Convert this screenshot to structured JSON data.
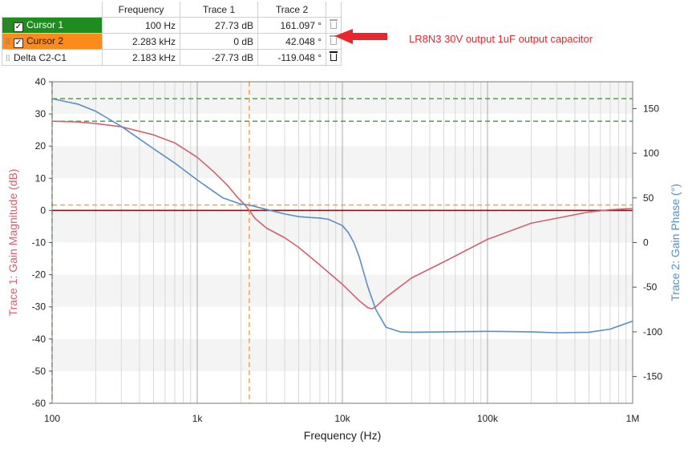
{
  "cursor_table": {
    "headers": [
      "Frequency",
      "Trace 1",
      "Trace 2"
    ],
    "rows": [
      {
        "name": "Cursor 1",
        "checked": true,
        "freq": "100 Hz",
        "t1": "27.73 dB",
        "t2": "161.097 °",
        "color": "#1e8c1e"
      },
      {
        "name": "Cursor 2",
        "checked": true,
        "freq": "2.283 kHz",
        "t1": "0 dB",
        "t2": "42.048 °",
        "color": "#ff8a1c"
      },
      {
        "name": "Delta C2-C1",
        "checked": false,
        "freq": "2.183 kHz",
        "t1": "-27.73 dB",
        "t2": "-119.048 °"
      }
    ]
  },
  "annotation": {
    "text": "LR8N3  30V output  1uF output capacitor",
    "color": "#e8262d"
  },
  "chart_data": {
    "type": "line",
    "xlabel": "Frequency (Hz)",
    "ylabel": "Trace 1: Gain Magnitude (dB)",
    "y2label": "Trace 2: Gain Phase (°)",
    "x_scale": "log",
    "xlim": [
      100,
      1000000
    ],
    "ylim": [
      -60,
      40
    ],
    "y2lim": [
      -180,
      180
    ],
    "x_ticks": [
      {
        "v": 100,
        "label": "100"
      },
      {
        "v": 1000,
        "label": "1k"
      },
      {
        "v": 10000,
        "label": "10k"
      },
      {
        "v": 100000,
        "label": "100k"
      },
      {
        "v": 1000000,
        "label": "1M"
      }
    ],
    "y_ticks": [
      40,
      30,
      20,
      10,
      0,
      -10,
      -20,
      -30,
      -40,
      -50,
      -60
    ],
    "y2_ticks": [
      150,
      100,
      50,
      0,
      -50,
      -100,
      -150
    ],
    "grid": true,
    "series": [
      {
        "axis": "left",
        "color": "#d2616e",
        "x": [
          100,
          150,
          200,
          300,
          500,
          700,
          1000,
          1300,
          1600,
          1900,
          2100,
          2283,
          2500,
          3000,
          4000,
          5000,
          7000,
          10000,
          13000,
          15000,
          16000,
          17000,
          20000,
          30000,
          50000,
          100000,
          200000,
          500000,
          700000,
          1000000
        ],
        "y": [
          27.73,
          27.5,
          27.0,
          26.0,
          23.5,
          21.0,
          16.5,
          12.0,
          8.0,
          4.0,
          2.0,
          0.0,
          -2.5,
          -5.5,
          -8.5,
          -11.5,
          -17.0,
          -23.0,
          -28.0,
          -30.3,
          -30.6,
          -30.0,
          -27.0,
          -21.0,
          -16.0,
          -9.0,
          -4.0,
          -0.5,
          0.2,
          0.6
        ]
      },
      {
        "axis": "right",
        "color": "#5a8ec6",
        "x": [
          100,
          150,
          200,
          300,
          400,
          500,
          700,
          1000,
          1500,
          2000,
          2283,
          3000,
          4000,
          5000,
          6000,
          7000,
          8000,
          10000,
          11000,
          12000,
          13000,
          15000,
          17000,
          20000,
          25000,
          30000,
          50000,
          100000,
          200000,
          300000,
          500000,
          700000,
          1000000
        ],
        "y": [
          161.1,
          155.0,
          147.0,
          130.0,
          116.0,
          105.0,
          89.0,
          70.0,
          50.0,
          43.0,
          42.048,
          37.0,
          32.0,
          29.0,
          28.0,
          27.5,
          26.0,
          19.0,
          11.0,
          0.0,
          -15.0,
          -50.0,
          -75.0,
          -95.0,
          -100.0,
          -100.5,
          -100.0,
          -99.5,
          -100.0,
          -101.0,
          -100.5,
          -97.0,
          -88.0
        ]
      }
    ],
    "reference_lines": [
      {
        "orientation": "horizontal",
        "axis": "right",
        "value": 161.097,
        "color": "#3c9a3c",
        "style": "dashed"
      },
      {
        "orientation": "horizontal",
        "axis": "left",
        "value": 27.73,
        "color": "#3c9a3c",
        "style": "dashed"
      },
      {
        "orientation": "horizontal",
        "axis": "right",
        "value": 42.048,
        "color": "#ff9c3c",
        "style": "dashed"
      },
      {
        "orientation": "horizontal",
        "axis": "left",
        "value": 0,
        "color": "#ff9c3c",
        "style": "dashed"
      },
      {
        "orientation": "vertical",
        "value": 100,
        "color": "#3c9a3c",
        "style": "dashed"
      },
      {
        "orientation": "vertical",
        "value": 2283,
        "color": "#ff9c3c",
        "style": "dashed"
      },
      {
        "orientation": "horizontal",
        "axis": "left",
        "value": 0,
        "color": "#7a1a1a",
        "style": "solid"
      }
    ]
  }
}
